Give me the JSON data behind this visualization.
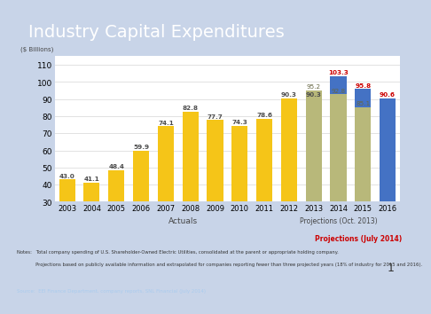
{
  "title": "Industry Capital Expenditures",
  "ylabel": "($ Billions)",
  "years": [
    2003,
    2004,
    2005,
    2006,
    2007,
    2008,
    2009,
    2010,
    2011,
    2012,
    2013,
    2014,
    2015,
    2016
  ],
  "values": [
    43.0,
    41.1,
    48.4,
    59.9,
    74.1,
    82.8,
    77.7,
    74.3,
    78.6,
    90.3,
    90.3,
    103.3,
    95.8,
    90.6
  ],
  "bar_colors": [
    "#F5C518",
    "#F5C518",
    "#F5C518",
    "#F5C518",
    "#F5C518",
    "#F5C518",
    "#F5C518",
    "#F5C518",
    "#F5C518",
    "#F5C518",
    "#F5C518",
    "#4472C4",
    "#4472C4",
    "#4472C4"
  ],
  "oct2013_values": [
    null,
    null,
    null,
    null,
    null,
    null,
    null,
    null,
    null,
    null,
    95.2,
    92.8,
    85.1,
    null
  ],
  "value_label_colors": [
    "#4D4D4D",
    "#4D4D4D",
    "#4D4D4D",
    "#4D4D4D",
    "#4D4D4D",
    "#4D4D4D",
    "#4D4D4D",
    "#4D4D4D",
    "#4D4D4D",
    "#4D4D4D",
    "#4D4D4D",
    "#CC0000",
    "#CC0000",
    "#CC0000"
  ],
  "oct_label_color": "#666644",
  "ylim": [
    30,
    115
  ],
  "yticks": [
    30,
    40,
    50,
    60,
    70,
    80,
    90,
    100,
    110
  ],
  "title_bg_color": "#1B4185",
  "title_text_color": "#FFFFFF",
  "chart_bg_color": "#FFFFFF",
  "outer_bg_color": "#C8D4E8",
  "actuals_label": "Actuals",
  "proj_oct_label": "Projections (Oct. 2013)",
  "proj_jul_label": "Projections (July 2014)",
  "notes_line1": "Notes:   Total company spending of U.S. Shareholder-Owned Electric Utilities, consolidated at the parent or appropriate holding company.",
  "notes_line2": "             Projections based on publicly available information and extrapolated for companies reporting fewer than three projected years (18% of industry for 2015 and 2016).",
  "source_text": "Source:  EEI Finance Department, company reports, SNL Financial (July 2014)",
  "page_num": "1",
  "actuals_color": "#FFE699",
  "actuals_border": "#C9A800",
  "oct2013_bar_color": "#B8B87A",
  "oct2013_legend_color": "#C8C89A",
  "oct2013_border": "#888855",
  "proj_jul_color": "#FFCCCC",
  "proj_jul_border": "#CC3333",
  "grid_color": "#DDDDDD"
}
